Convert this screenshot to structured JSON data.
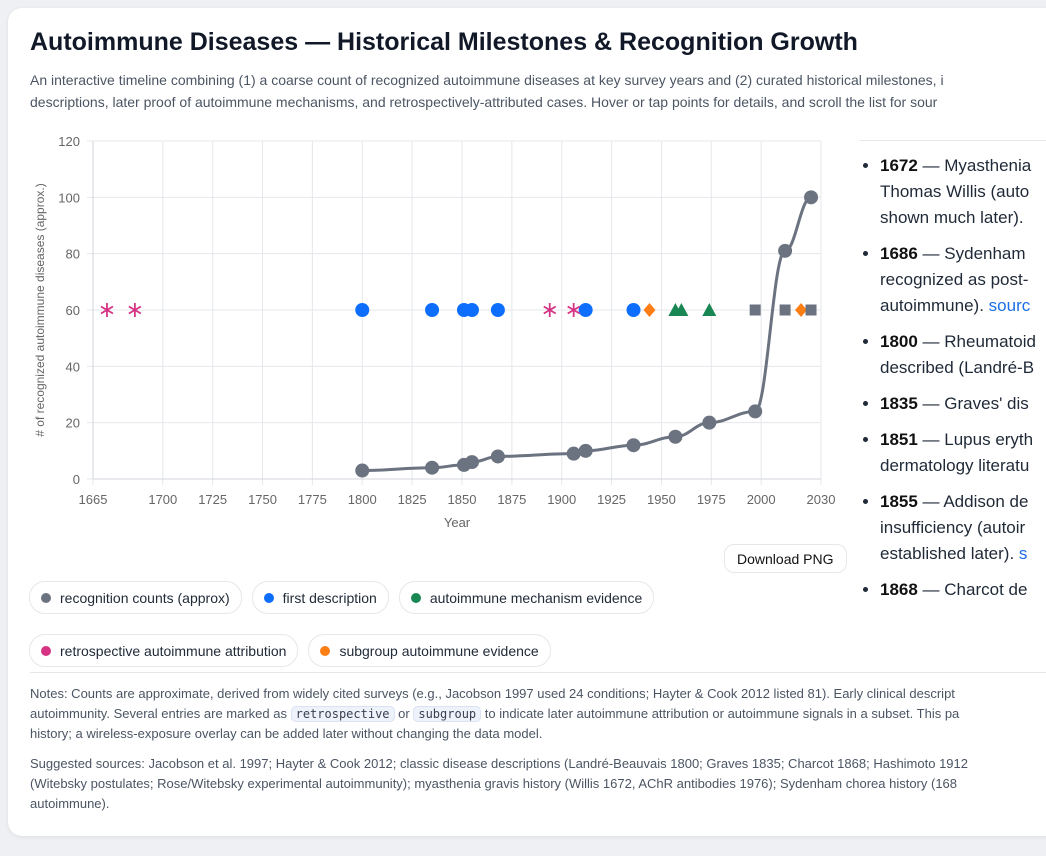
{
  "title": "Autoimmune Diseases — Historical Milestones & Recognition Growth",
  "subtitle_lines": [
    "An interactive timeline combining (1) a coarse count of recognized autoimmune diseases at key survey years and (2) curated historical milestones, i",
    "descriptions, later proof of autoimmune mechanisms, and retrospectively-attributed cases. Hover or tap points for details, and scroll the list for sour"
  ],
  "download_label": "Download PNG",
  "chart_data": {
    "type": "line+scatter",
    "xlabel": "Year",
    "ylabel": "# of recognized autoimmune diseases (approx.)",
    "xlim": [
      1665,
      2030
    ],
    "ylim": [
      0,
      120
    ],
    "xticks": [
      "1665",
      "1700",
      "1725",
      "1750",
      "1775",
      "1800",
      "1825",
      "1850",
      "1875",
      "1900",
      "1925",
      "1950",
      "1975",
      "2000",
      "2030"
    ],
    "yticks": [
      "0",
      "20",
      "40",
      "60",
      "80",
      "100",
      "120"
    ],
    "grid": true,
    "series": [
      {
        "name": "recognition counts (approx)",
        "color": "#6b7280",
        "marker": "circle",
        "line": true,
        "x": [
          1800,
          1835,
          1851,
          1855,
          1868,
          1906,
          1912,
          1936,
          1957,
          1974,
          1997,
          2012,
          2025
        ],
        "y": [
          3,
          4,
          5,
          6,
          8,
          9,
          10,
          12,
          15,
          20,
          24,
          81,
          100
        ]
      },
      {
        "name": "first description",
        "color": "#0d6efd",
        "marker": "circle",
        "x": [
          1800,
          1835,
          1851,
          1855,
          1868,
          1912,
          1936
        ],
        "y": [
          60,
          60,
          60,
          60,
          60,
          60,
          60
        ]
      },
      {
        "name": "autoimmune mechanism evidence",
        "color": "#198754",
        "marker": "triangle",
        "x": [
          1957,
          1960,
          1974
        ],
        "y": [
          60,
          60,
          60
        ]
      },
      {
        "name": "retrospective autoimmune attribution",
        "color": "#d63384",
        "marker": "asterisk",
        "x": [
          1672,
          1686,
          1894,
          1906
        ],
        "y": [
          60,
          60,
          60,
          60
        ]
      },
      {
        "name": "subgroup autoimmune evidence",
        "color": "#fd7e14",
        "marker": "diamond",
        "x": [
          1944,
          2020
        ],
        "y": [
          60,
          60
        ]
      },
      {
        "name": "",
        "color": "#6b7280",
        "marker": "square",
        "x": [
          1997,
          2012,
          2025
        ],
        "y": [
          60,
          60,
          60
        ]
      }
    ]
  },
  "legend": [
    {
      "label": "recognition counts (approx)",
      "color": "#6b7280"
    },
    {
      "label": "first description",
      "color": "#0d6efd"
    },
    {
      "label": "autoimmune mechanism evidence",
      "color": "#198754"
    },
    {
      "label": "retrospective autoimmune attribution",
      "color": "#d63384"
    },
    {
      "label": "subgroup autoimmune evidence",
      "color": "#fd7e14"
    }
  ],
  "milestones": [
    {
      "year": "1672",
      "lines": [
        "— Myasthenia",
        "Thomas Willis (auto",
        "shown much later)."
      ],
      "link": ""
    },
    {
      "year": "1686",
      "lines": [
        "— Sydenham",
        "recognized as post-",
        "autoimmune)."
      ],
      "link": "sourc"
    },
    {
      "year": "1800",
      "lines": [
        "— Rheumatoid",
        "described (Landré-B"
      ],
      "link": ""
    },
    {
      "year": "1835",
      "lines": [
        "— Graves' dis"
      ],
      "link": ""
    },
    {
      "year": "1851",
      "lines": [
        "— Lupus eryth",
        "dermatology literatu"
      ],
      "link": ""
    },
    {
      "year": "1855",
      "lines": [
        "— Addison de",
        "insufficiency (autoir",
        "established later)."
      ],
      "link": "s"
    },
    {
      "year": "1868",
      "lines": [
        "— Charcot de"
      ],
      "link": ""
    }
  ],
  "notes": {
    "line1": "Notes: Counts are approximate, derived from widely cited surveys (e.g., Jacobson 1997 used 24 conditions; Hayter & Cook 2012 listed 81). Early clinical descript",
    "line2_a": "autoimmunity. Several entries are marked as",
    "tag1": "retrospective",
    "or": "or",
    "tag2": "subgroup",
    "line2_b": "to indicate later autoimmune attribution or autoimmune signals in a subset. This pa",
    "line3": "history; a wireless-exposure overlay can be added later without changing the data model."
  },
  "sources": {
    "line1": "Suggested sources: Jacobson et al. 1997; Hayter & Cook 2012; classic disease descriptions (Landré-Beauvais 1800; Graves 1835; Charcot 1868; Hashimoto 1912",
    "line2": "(Witebsky postulates; Rose/Witebsky experimental autoimmunity); myasthenia gravis history (Willis 1672, AChR antibodies 1976); Sydenham chorea history (168",
    "line3": "autoimmune)."
  }
}
